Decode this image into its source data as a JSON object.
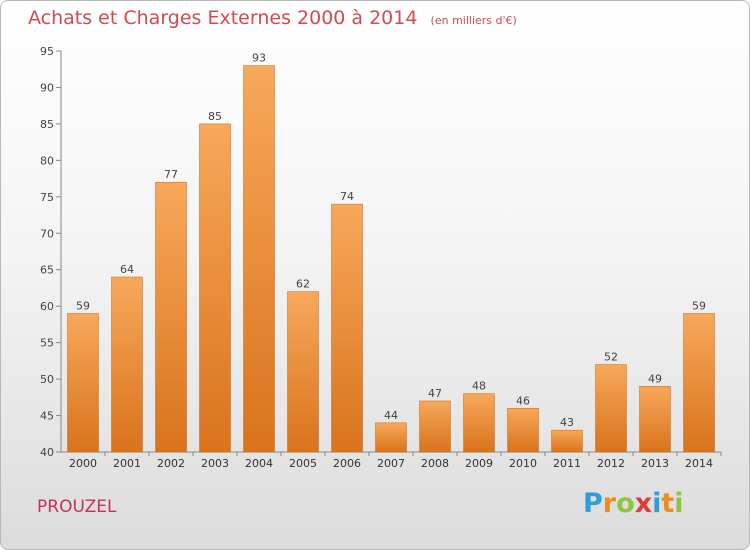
{
  "title": "Achats et Charges Externes 2000 à 2014",
  "subtitle": "(en milliers d'€)",
  "commune": "PROUZEL",
  "logo": {
    "letters": [
      "P",
      "r",
      "o",
      "x",
      "i",
      "t",
      "i"
    ],
    "colors": [
      "#2a9fd8",
      "#f08a1c",
      "#8cc63f",
      "#e23a3a",
      "#2a9fd8",
      "#f08a1c",
      "#8cc63f"
    ]
  },
  "colors": {
    "bar_light": "#f7a85a",
    "bar_dark": "#d9731c",
    "title": "#d24a50"
  },
  "chart_data": {
    "type": "bar",
    "categories": [
      "2000",
      "2001",
      "2002",
      "2003",
      "2004",
      "2005",
      "2006",
      "2007",
      "2008",
      "2009",
      "2010",
      "2011",
      "2012",
      "2013",
      "2014"
    ],
    "values": [
      59,
      64,
      77,
      85,
      93,
      62,
      74,
      44,
      47,
      48,
      46,
      43,
      52,
      49,
      59
    ],
    "title": "Achats et Charges Externes 2000 à 2014",
    "subtitle": "(en milliers d'€)",
    "ylim": [
      40,
      95
    ],
    "yticks": [
      40,
      45,
      50,
      55,
      60,
      65,
      70,
      75,
      80,
      85,
      90,
      95
    ],
    "grid": false,
    "data_labels": true
  }
}
